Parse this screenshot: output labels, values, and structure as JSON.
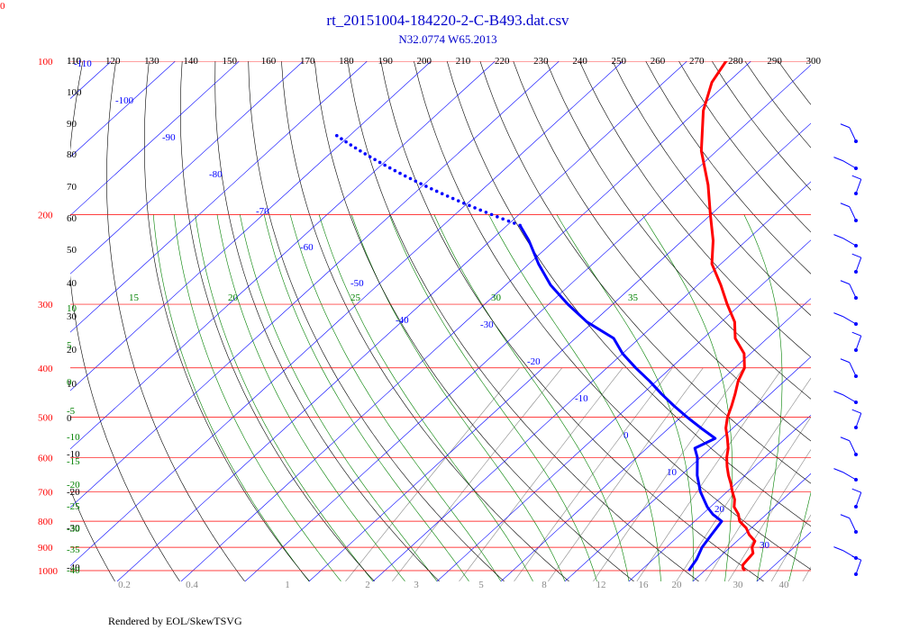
{
  "chart_data": {
    "type": "line",
    "title": "rt_20151004-184220-2-C-B493.dat.csv",
    "subtitle": "N32.0774 W65.2013",
    "corner_label": "0",
    "footer": "Rendered by EOL/SkewTSVG",
    "pressure_labels": [
      "100",
      "200",
      "300",
      "400",
      "500",
      "600",
      "700",
      "800",
      "900",
      "1000"
    ],
    "pressure_levels": [
      100,
      200,
      300,
      400,
      500,
      600,
      700,
      800,
      900,
      1000
    ],
    "theta_labels": [
      "110",
      "120",
      "130",
      "140",
      "150",
      "160",
      "170",
      "180",
      "190",
      "200",
      "210",
      "220",
      "230",
      "240",
      "250",
      "260",
      "270",
      "280",
      "290",
      "300"
    ],
    "left_axis_labels": [
      "110",
      "100",
      "90",
      "80",
      "70",
      "60",
      "50",
      "40",
      "30",
      "20",
      "10",
      "0",
      "-10",
      "-20",
      "-30",
      "-40"
    ],
    "isotherm_labels": [
      "-110",
      "-100",
      "-90",
      "-80",
      "-70",
      "-60",
      "-50",
      "-40",
      "-30",
      "-20",
      "-10",
      "0",
      "10",
      "20",
      "30"
    ],
    "moist_adiabat_labels": [
      "10",
      "15",
      "20",
      "25",
      "30",
      "35"
    ],
    "left_moist_labels": [
      "5",
      "0",
      "-5",
      "-10",
      "-15",
      "-20",
      "-25",
      "-30",
      "-35",
      "-40"
    ],
    "mixing_ratio_labels": [
      "0.2",
      "0.4",
      "1",
      "2",
      "3",
      "5",
      "8",
      "12",
      "16",
      "20",
      "30",
      "40"
    ],
    "colors": {
      "title": "#0000cc",
      "temperature": "#ff0000",
      "dewpoint": "#0000ff",
      "isobar": "#ff0000",
      "isotherm": "#0000ff",
      "dry_adiabat": "#000000",
      "moist_adiabat": "#008000",
      "mixing_ratio": "#888888",
      "barbs": "#0000ff"
    },
    "series": [
      {
        "key": "temperature",
        "points": [
          [
            1000,
            26.3
          ],
          [
            990,
            25.6
          ],
          [
            975,
            25.0
          ],
          [
            950,
            24.8
          ],
          [
            925,
            24.6
          ],
          [
            900,
            23.4
          ],
          [
            875,
            22.8
          ],
          [
            850,
            20.8
          ],
          [
            825,
            19.2
          ],
          [
            800,
            17.0
          ],
          [
            775,
            15.6
          ],
          [
            750,
            13.7
          ],
          [
            725,
            12.5
          ],
          [
            700,
            10.8
          ],
          [
            675,
            9.2
          ],
          [
            650,
            7.4
          ],
          [
            625,
            5.7
          ],
          [
            600,
            4.1
          ],
          [
            575,
            2.7
          ],
          [
            550,
            0.9
          ],
          [
            525,
            -1.1
          ],
          [
            500,
            -2.7
          ],
          [
            475,
            -4.0
          ],
          [
            450,
            -5.5
          ],
          [
            425,
            -7.2
          ],
          [
            400,
            -8.5
          ],
          [
            375,
            -11.0
          ],
          [
            350,
            -15.0
          ],
          [
            325,
            -17.9
          ],
          [
            300,
            -22.1
          ],
          [
            275,
            -26.4
          ],
          [
            250,
            -31.4
          ],
          [
            225,
            -35.2
          ],
          [
            200,
            -40.1
          ],
          [
            175,
            -45.5
          ],
          [
            150,
            -52.4
          ],
          [
            125,
            -59.0
          ],
          [
            110,
            -62.5
          ],
          [
            100,
            -63.9
          ],
          [
            90,
            -62.5
          ],
          [
            82,
            -59.0
          ],
          [
            75,
            -55.0
          ],
          [
            70,
            -52.0
          ]
        ]
      },
      {
        "key": "dewpoint",
        "points": [
          [
            1000,
            17.5
          ],
          [
            950,
            16.8
          ],
          [
            900,
            15.6
          ],
          [
            850,
            14.9
          ],
          [
            800,
            14.2
          ],
          [
            775,
            11.6
          ],
          [
            750,
            9.5
          ],
          [
            700,
            5.8
          ],
          [
            650,
            2.5
          ],
          [
            600,
            -0.5
          ],
          [
            575,
            -2.5
          ],
          [
            550,
            -1.0
          ],
          [
            525,
            -5.0
          ],
          [
            500,
            -9.0
          ],
          [
            475,
            -13.0
          ],
          [
            450,
            -17.0
          ],
          [
            425,
            -21.0
          ],
          [
            400,
            -25.5
          ],
          [
            375,
            -30.0
          ],
          [
            350,
            -34.0
          ],
          [
            325,
            -41.0
          ],
          [
            300,
            -47.0
          ],
          [
            275,
            -53.0
          ],
          [
            250,
            -58.5
          ],
          [
            225,
            -64.0
          ],
          [
            210,
            -68.0
          ]
        ]
      }
    ]
  }
}
